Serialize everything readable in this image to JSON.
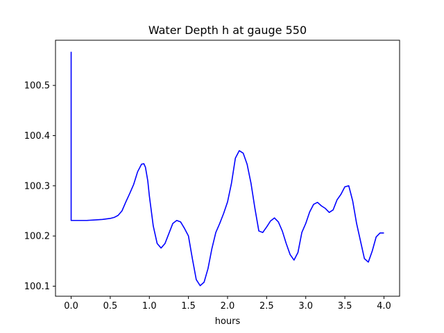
{
  "chart_data": {
    "type": "line",
    "title": "Water Depth h at gauge 550",
    "xlabel": "hours",
    "ylabel": "",
    "xlim": [
      -0.2,
      4.2
    ],
    "ylim": [
      100.08,
      100.59
    ],
    "xticks": [
      0.0,
      0.5,
      1.0,
      1.5,
      2.0,
      2.5,
      3.0,
      3.5,
      4.0
    ],
    "xtick_labels": [
      "0.0",
      "0.5",
      "1.0",
      "1.5",
      "2.0",
      "2.5",
      "3.0",
      "3.5",
      "4.0"
    ],
    "yticks": [
      100.1,
      100.2,
      100.3,
      100.4,
      100.5
    ],
    "ytick_labels": [
      "100.1",
      "100.2",
      "100.3",
      "100.4",
      "100.5"
    ],
    "grid": false,
    "series": [
      {
        "color": "#0000ff",
        "x": [
          0.0,
          0.0,
          0.0,
          0.1,
          0.2,
          0.3,
          0.4,
          0.5,
          0.55,
          0.6,
          0.65,
          0.7,
          0.75,
          0.8,
          0.85,
          0.9,
          0.93,
          0.95,
          0.98,
          1.0,
          1.05,
          1.1,
          1.15,
          1.2,
          1.25,
          1.3,
          1.35,
          1.4,
          1.45,
          1.5,
          1.55,
          1.6,
          1.65,
          1.7,
          1.75,
          1.8,
          1.85,
          1.9,
          1.95,
          2.0,
          2.05,
          2.1,
          2.15,
          2.2,
          2.25,
          2.3,
          2.35,
          2.4,
          2.45,
          2.5,
          2.55,
          2.6,
          2.65,
          2.7,
          2.75,
          2.8,
          2.85,
          2.9,
          2.95,
          3.0,
          3.05,
          3.1,
          3.15,
          3.2,
          3.25,
          3.3,
          3.35,
          3.4,
          3.45,
          3.5,
          3.55,
          3.6,
          3.65,
          3.7,
          3.75,
          3.8,
          3.85,
          3.9,
          3.95,
          4.0
        ],
        "y": [
          100.567,
          100.567,
          100.231,
          100.231,
          100.231,
          100.232,
          100.233,
          100.235,
          100.237,
          100.241,
          100.25,
          100.268,
          100.285,
          100.303,
          100.328,
          100.343,
          100.344,
          100.337,
          100.31,
          100.28,
          100.22,
          100.185,
          100.176,
          100.185,
          100.205,
          100.225,
          100.231,
          100.228,
          100.215,
          100.2,
          100.155,
          100.113,
          100.101,
          100.108,
          100.135,
          100.175,
          100.207,
          100.225,
          100.245,
          100.268,
          100.305,
          100.355,
          100.37,
          100.365,
          100.343,
          100.305,
          100.255,
          100.21,
          100.207,
          100.218,
          100.23,
          100.236,
          100.228,
          100.21,
          100.185,
          100.163,
          100.152,
          100.167,
          100.207,
          100.225,
          100.248,
          100.263,
          100.267,
          100.26,
          100.255,
          100.247,
          100.252,
          100.272,
          100.283,
          100.298,
          100.3,
          100.27,
          100.225,
          100.19,
          100.155,
          100.148,
          100.17,
          100.198,
          100.206,
          100.206
        ]
      }
    ]
  }
}
